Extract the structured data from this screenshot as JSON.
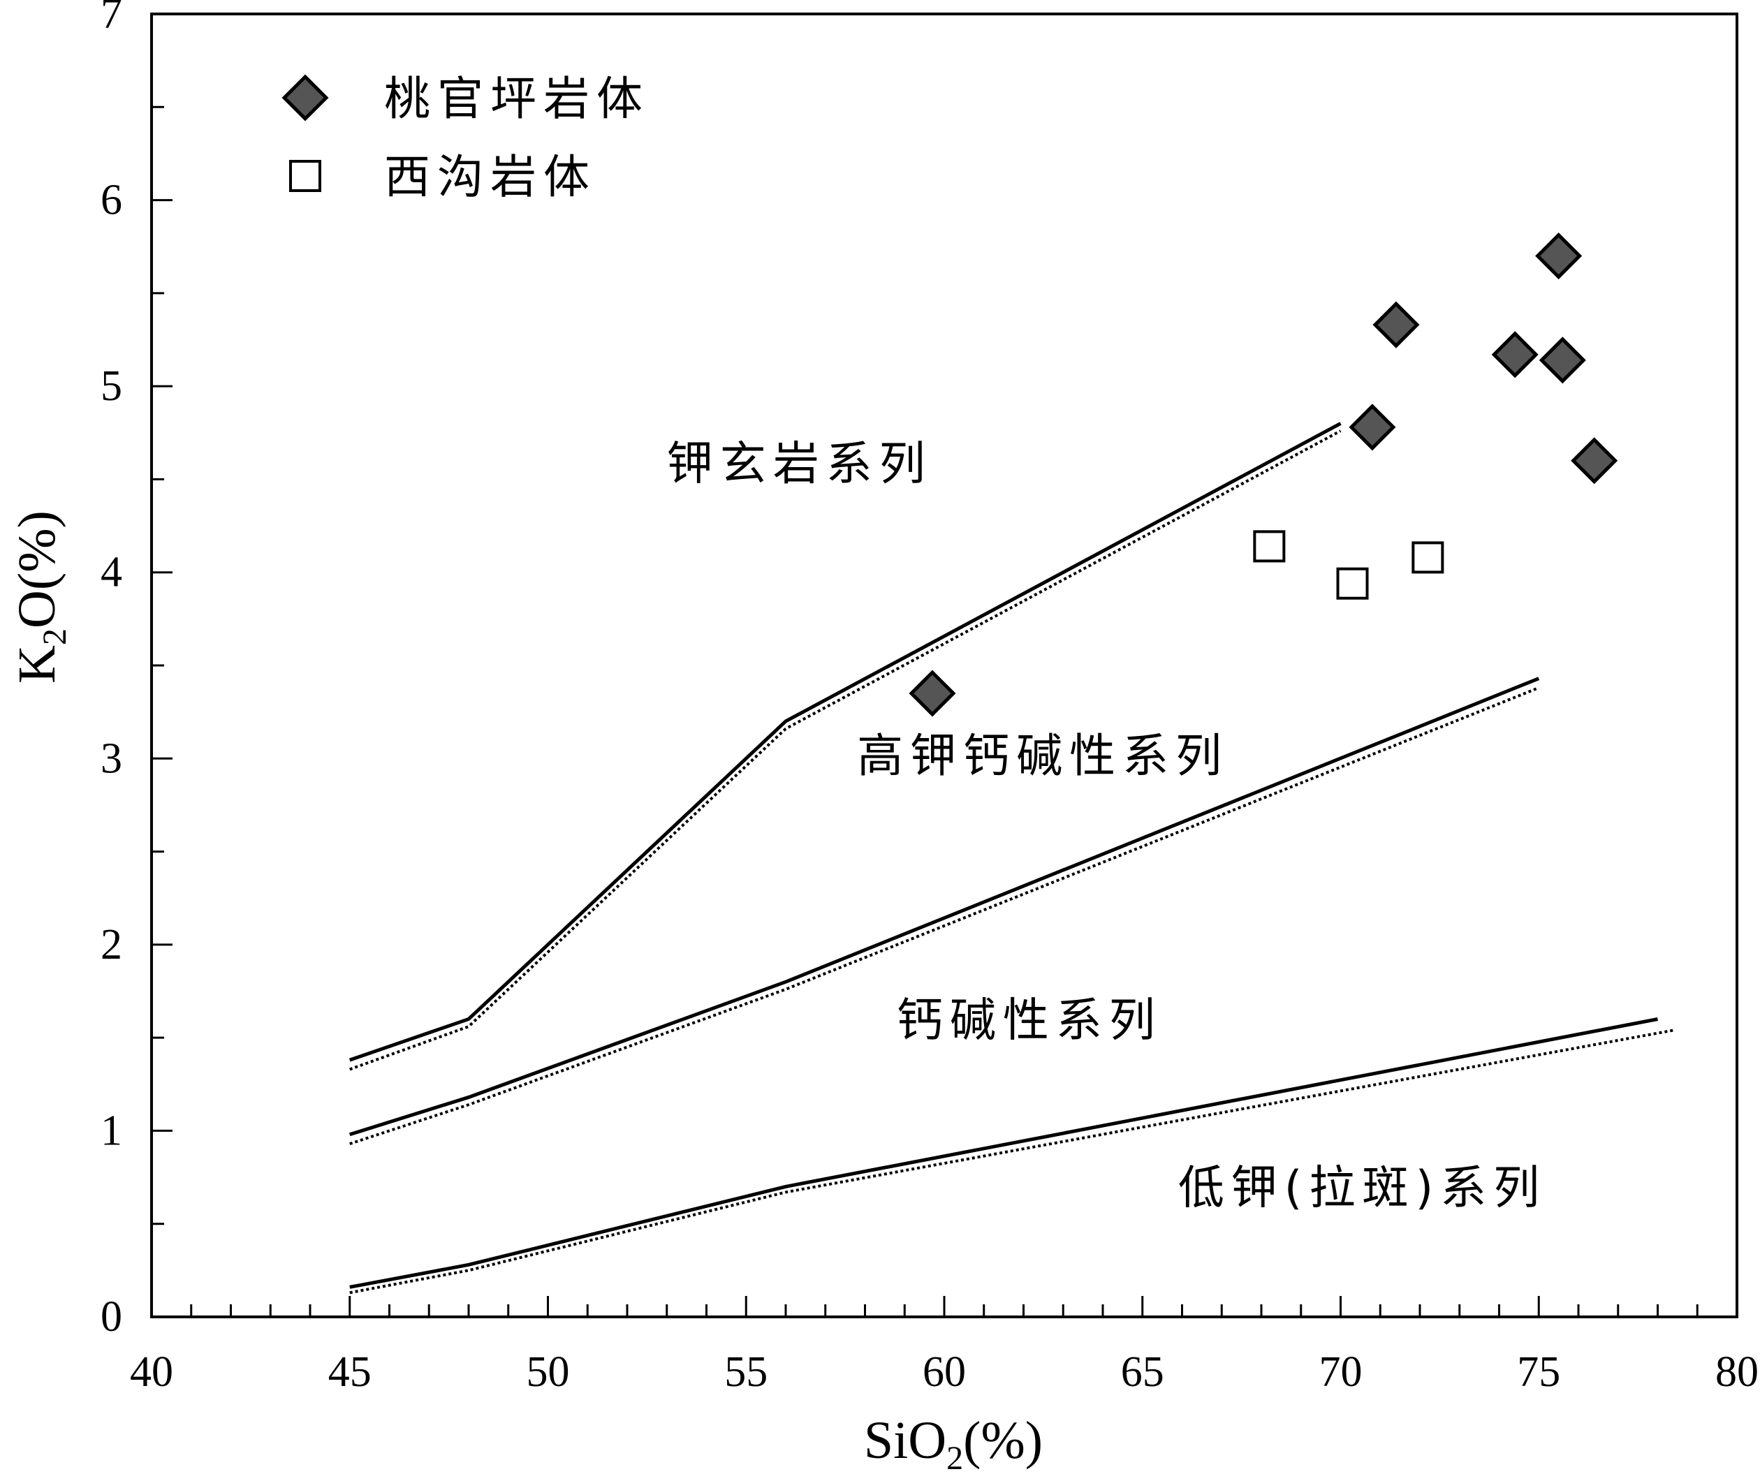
{
  "chart_data": {
    "type": "scatter",
    "title": "",
    "xlabel": {
      "main": "SiO",
      "sub": "2",
      "tail": "(%)"
    },
    "ylabel": {
      "main": "K",
      "sub": "2",
      "tail": "O(%)"
    },
    "xlim": [
      40,
      80
    ],
    "ylim": [
      0,
      7
    ],
    "x_major_ticks": [
      40,
      45,
      50,
      55,
      60,
      65,
      70,
      75,
      80
    ],
    "x_tick_labels": [
      "40",
      "45",
      "50",
      "55",
      "60",
      "65",
      "70",
      "75",
      "80"
    ],
    "x_minor_step": 1,
    "y_major_ticks": [
      0,
      1,
      2,
      3,
      4,
      5,
      6,
      7
    ],
    "y_tick_labels": [
      "0",
      "1",
      "2",
      "3",
      "4",
      "5",
      "6",
      "7"
    ],
    "y_minor_step": 0.5,
    "grid": false,
    "legend_position": "top-left",
    "series": [
      {
        "name": "桃官坪岩体",
        "marker": "diamond",
        "fill": "#555555",
        "points": [
          [
            59.7,
            3.35
          ],
          [
            70.8,
            4.78
          ],
          [
            71.4,
            5.33
          ],
          [
            74.4,
            5.17
          ],
          [
            75.5,
            5.7
          ],
          [
            75.6,
            5.14
          ],
          [
            76.4,
            4.6
          ]
        ]
      },
      {
        "name": "西沟岩体",
        "marker": "square",
        "fill": "#ffffff",
        "points": [
          [
            68.2,
            4.14
          ],
          [
            70.3,
            3.94
          ],
          [
            72.2,
            4.08
          ]
        ]
      }
    ],
    "boundary_lines": [
      {
        "solid": [
          [
            45,
            1.38
          ],
          [
            48,
            1.6
          ],
          [
            56,
            3.2
          ],
          [
            70,
            4.8
          ]
        ],
        "dotted": [
          [
            45,
            1.33
          ],
          [
            48,
            1.56
          ],
          [
            56,
            3.16
          ],
          [
            70,
            4.76
          ]
        ]
      },
      {
        "solid": [
          [
            45,
            0.98
          ],
          [
            48,
            1.18
          ],
          [
            56,
            1.8
          ],
          [
            75,
            3.43
          ]
        ],
        "dotted": [
          [
            45,
            0.93
          ],
          [
            48,
            1.14
          ],
          [
            56,
            1.76
          ],
          [
            75,
            3.38
          ]
        ]
      },
      {
        "solid": [
          [
            45,
            0.16
          ],
          [
            48,
            0.28
          ],
          [
            56,
            0.7
          ],
          [
            78,
            1.6
          ]
        ],
        "dotted": [
          [
            45,
            0.13
          ],
          [
            48,
            0.25
          ],
          [
            56,
            0.67
          ],
          [
            78.4,
            1.54
          ]
        ]
      }
    ],
    "region_labels": [
      {
        "text": "钾玄岩系列",
        "x": 53.0,
        "y": 4.5
      },
      {
        "text": "高钾钙碱性系列",
        "x": 57.8,
        "y": 2.93
      },
      {
        "text": "钙碱性系列",
        "x": 58.8,
        "y": 1.51
      },
      {
        "text": "低钾(拉斑)系列",
        "x": 65.9,
        "y": 0.61
      }
    ]
  }
}
